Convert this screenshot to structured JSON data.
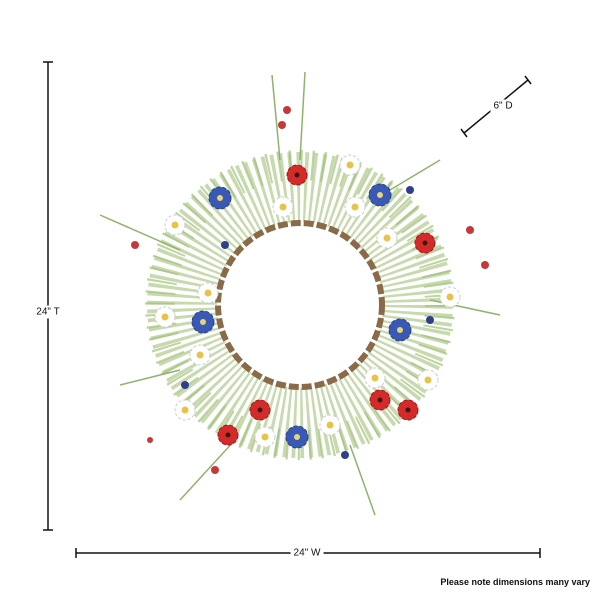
{
  "dimensions": {
    "depth": "6\" D",
    "height": "24\" T",
    "width": "24\" W"
  },
  "note": "Please note dimensions many vary"
}
